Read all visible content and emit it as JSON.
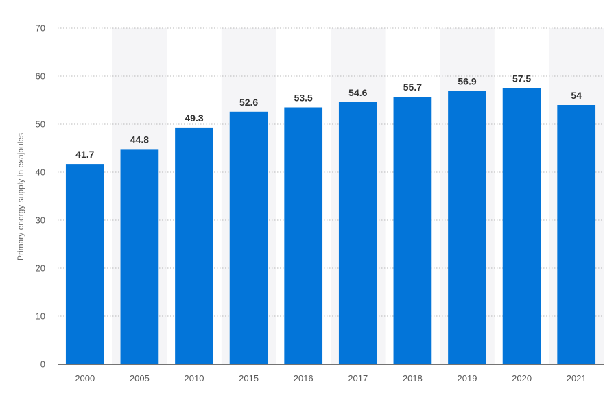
{
  "colors": {
    "bar": "#0375d9",
    "band": "#f5f5f7",
    "grid": "#b8b8b8",
    "axis": "#222222"
  },
  "chart_data": {
    "type": "bar",
    "title": "",
    "xlabel": "",
    "ylabel": "Primary energy supply in exajoules",
    "categories": [
      "2000",
      "2005",
      "2010",
      "2015",
      "2016",
      "2017",
      "2018",
      "2019",
      "2020",
      "2021"
    ],
    "values": [
      41.7,
      44.8,
      49.3,
      52.6,
      53.5,
      54.6,
      55.7,
      56.9,
      57.5,
      54
    ],
    "data_labels": [
      "41.7",
      "44.8",
      "49.3",
      "52.6",
      "53.5",
      "54.6",
      "55.7",
      "56.9",
      "57.5",
      "54"
    ],
    "ylim": [
      0,
      70
    ],
    "yticks": [
      0,
      10,
      20,
      30,
      40,
      50,
      60,
      70
    ],
    "grid": true,
    "legend": "none"
  }
}
